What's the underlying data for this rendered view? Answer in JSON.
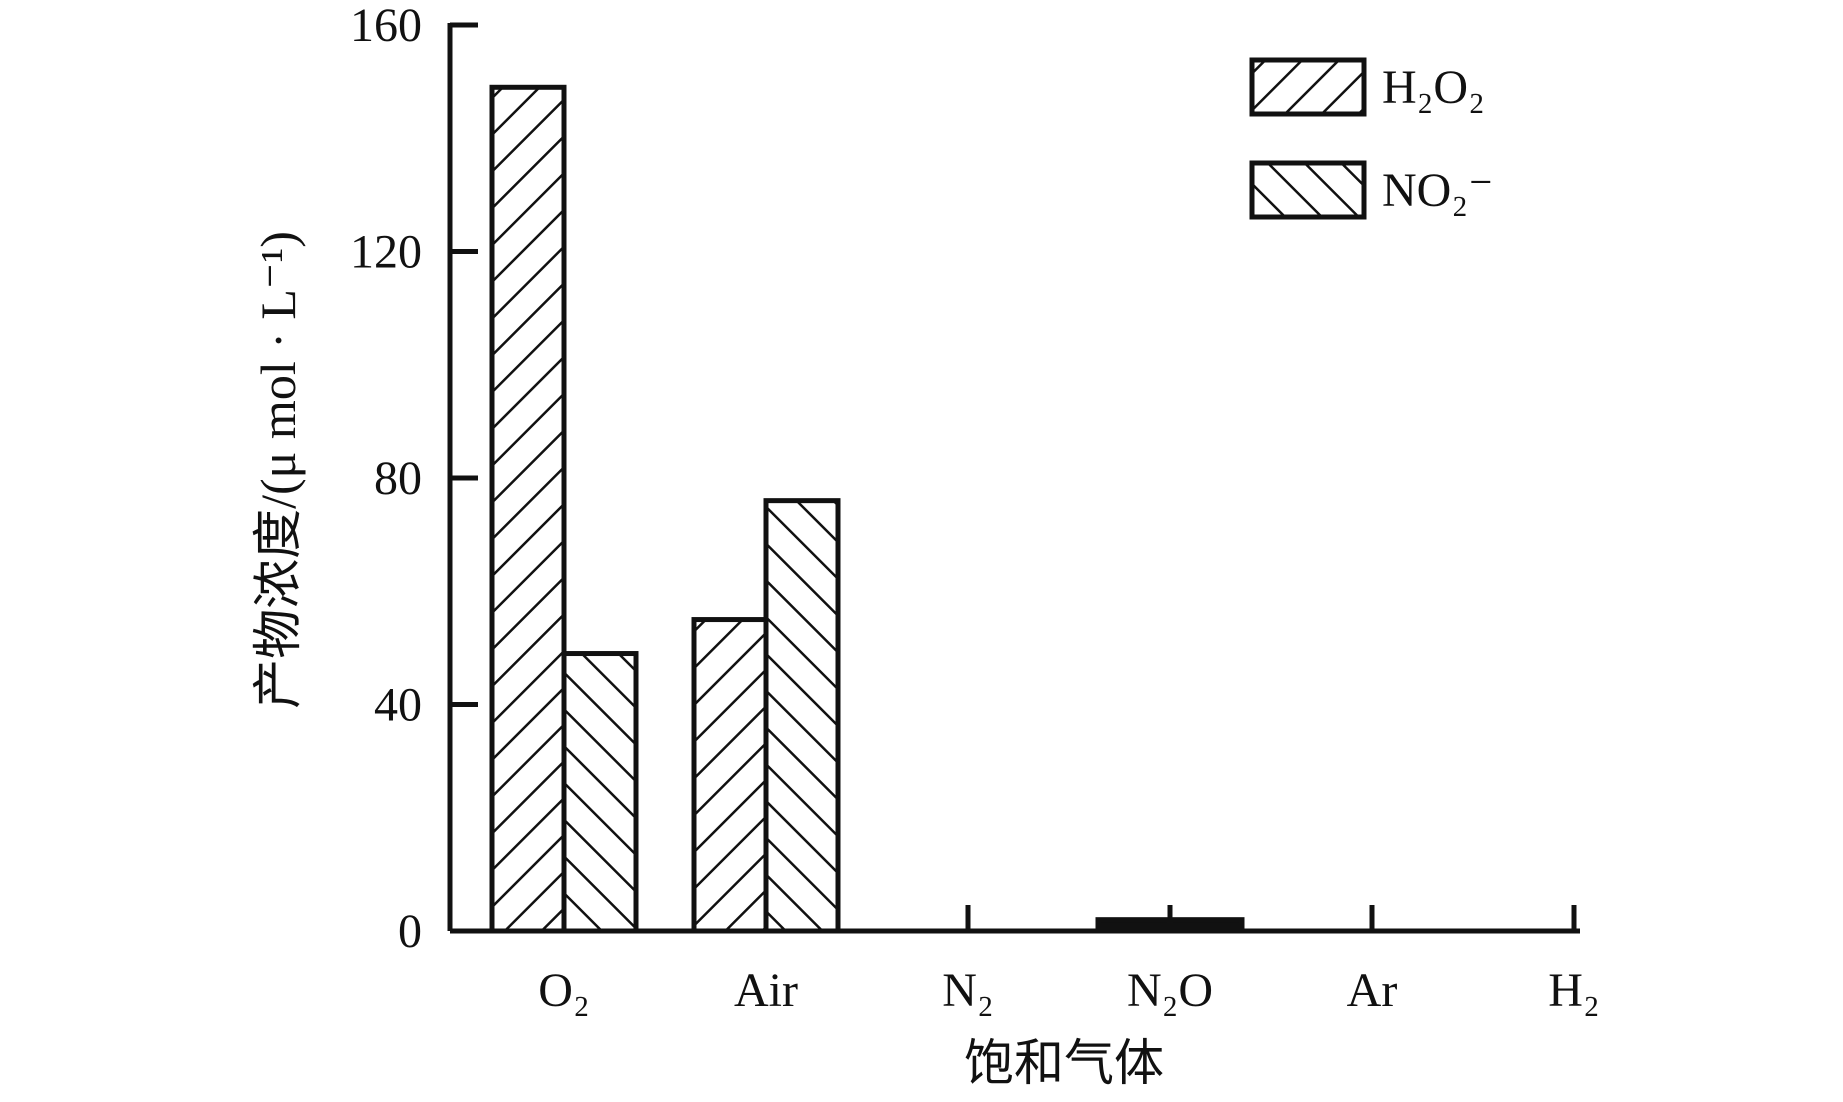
{
  "chart_data": {
    "type": "bar",
    "title": "",
    "xlabel": "饱和气体",
    "ylabel": "产物浓度/(μ mol · L⁻¹)",
    "ylim": [
      0,
      160
    ],
    "yticks": [
      0,
      40,
      80,
      120,
      160
    ],
    "categories": [
      "O₂",
      "Air",
      "N₂",
      "N₂O",
      "Ar",
      "H₂"
    ],
    "series": [
      {
        "name": "H₂O₂",
        "values": [
          149,
          55,
          0,
          2,
          0,
          0
        ],
        "hatch": "forward-diagonal"
      },
      {
        "name": "NO₂⁻",
        "values": [
          49,
          76,
          0,
          2,
          0,
          0
        ],
        "hatch": "back-diagonal"
      }
    ],
    "legend": {
      "position": "top-right"
    },
    "grid": false
  }
}
